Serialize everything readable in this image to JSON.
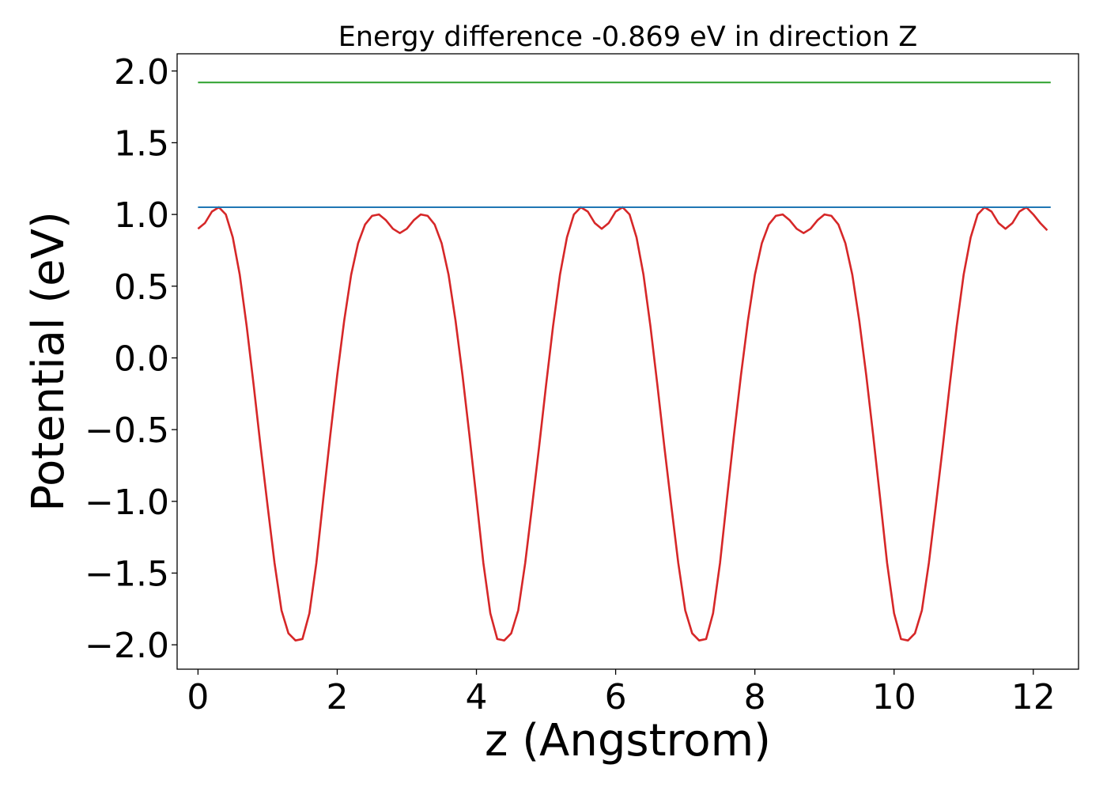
{
  "chart_data": {
    "type": "line",
    "title": "Energy difference -0.869 eV in direction Z",
    "xlabel": "z (Angstrom)",
    "ylabel": "Potential (eV)",
    "xlim": [
      -0.3,
      12.65
    ],
    "ylim": [
      -2.17,
      2.12
    ],
    "xticks": [
      0,
      2,
      4,
      6,
      8,
      10,
      12
    ],
    "yticks": [
      -2.0,
      -1.5,
      -1.0,
      -0.5,
      0.0,
      0.5,
      1.0,
      1.5,
      2.0
    ],
    "ytick_labels": [
      "−2.0",
      "−1.5",
      "−1.0",
      "−0.5",
      "0.0",
      "0.5",
      "1.0",
      "1.5",
      "2.0"
    ],
    "xtick_labels": [
      "0",
      "2",
      "4",
      "6",
      "8",
      "10",
      "12"
    ],
    "grid": false,
    "legend": "none",
    "series": [
      {
        "color": "#d62728",
        "x": [
          0.0,
          0.1,
          0.2,
          0.3,
          0.4,
          0.5,
          0.6,
          0.7,
          0.8,
          0.9,
          1.0,
          1.1,
          1.2,
          1.3,
          1.4,
          1.5,
          1.6,
          1.7,
          1.8,
          1.9,
          2.0,
          2.1,
          2.2,
          2.3,
          2.4,
          2.5,
          2.6,
          2.7,
          2.8,
          2.9,
          3.0,
          3.1,
          3.2,
          3.3,
          3.4,
          3.5,
          3.6,
          3.7,
          3.8,
          3.9,
          4.0,
          4.1,
          4.2,
          4.3,
          4.4,
          4.5,
          4.6,
          4.7,
          4.8,
          4.9,
          5.0,
          5.1,
          5.2,
          5.3,
          5.4,
          5.5,
          5.6,
          5.7,
          5.8,
          5.9,
          6.0,
          6.1,
          6.2,
          6.3,
          6.4,
          6.5,
          6.6,
          6.7,
          6.8,
          6.9,
          7.0,
          7.1,
          7.2,
          7.3,
          7.4,
          7.5,
          7.6,
          7.7,
          7.8,
          7.9,
          8.0,
          8.1,
          8.2,
          8.3,
          8.4,
          8.5,
          8.6,
          8.7,
          8.8,
          8.9,
          9.0,
          9.1,
          9.2,
          9.3,
          9.4,
          9.5,
          9.6,
          9.7,
          9.8,
          9.9,
          10.0,
          10.1,
          10.2,
          10.3,
          10.4,
          10.5,
          10.6,
          10.7,
          10.8,
          10.9,
          11.0,
          11.1,
          11.2,
          11.3,
          11.4,
          11.5,
          11.6,
          11.7,
          11.8,
          11.9,
          12.0,
          12.1,
          12.2
        ],
        "y": [
          0.9,
          0.94,
          1.02,
          1.05,
          1.0,
          0.84,
          0.58,
          0.22,
          -0.19,
          -0.62,
          -1.03,
          -1.43,
          -1.76,
          -1.92,
          -1.97,
          -1.96,
          -1.78,
          -1.43,
          -0.98,
          -0.54,
          -0.12,
          0.26,
          0.58,
          0.8,
          0.93,
          0.99,
          1.0,
          0.96,
          0.9,
          0.87,
          0.9,
          0.96,
          1.0,
          0.99,
          0.93,
          0.8,
          0.58,
          0.26,
          -0.12,
          -0.54,
          -0.98,
          -1.43,
          -1.78,
          -1.96,
          -1.97,
          -1.92,
          -1.76,
          -1.43,
          -1.03,
          -0.62,
          -0.19,
          0.22,
          0.58,
          0.84,
          1.0,
          1.05,
          1.02,
          0.94,
          0.9,
          0.94,
          1.02,
          1.05,
          1.0,
          0.84,
          0.58,
          0.22,
          -0.19,
          -0.62,
          -1.03,
          -1.43,
          -1.76,
          -1.92,
          -1.97,
          -1.96,
          -1.78,
          -1.43,
          -0.98,
          -0.54,
          -0.12,
          0.26,
          0.58,
          0.8,
          0.93,
          0.99,
          1.0,
          0.96,
          0.9,
          0.87,
          0.9,
          0.96,
          1.0,
          0.99,
          0.93,
          0.8,
          0.58,
          0.26,
          -0.12,
          -0.54,
          -0.98,
          -1.43,
          -1.78,
          -1.96,
          -1.97,
          -1.92,
          -1.76,
          -1.43,
          -1.03,
          -0.62,
          -0.19,
          0.22,
          0.58,
          0.84,
          1.0,
          1.05,
          1.02,
          0.94,
          0.9,
          0.94,
          1.02,
          1.05,
          1.0,
          0.94,
          0.89
        ]
      },
      {
        "color": "#1f77b4",
        "x": [
          0.0,
          12.25
        ],
        "y": [
          1.05,
          1.05
        ]
      },
      {
        "color": "#2ca02c",
        "x": [
          0.0,
          12.25
        ],
        "y": [
          1.92,
          1.92
        ]
      }
    ]
  }
}
